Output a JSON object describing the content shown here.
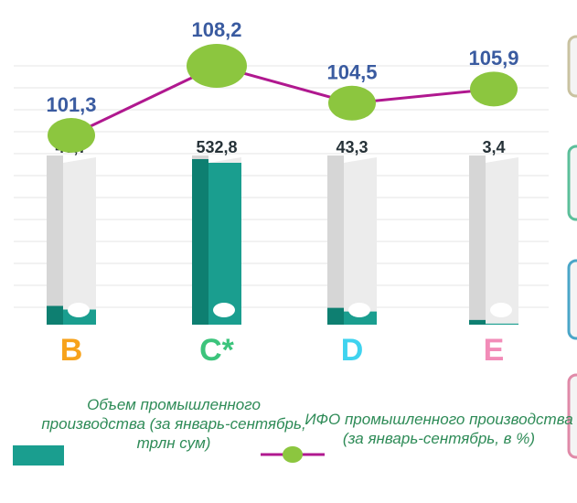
{
  "chart_data": {
    "type": "bar-line",
    "categories": [
      "B",
      "C*",
      "D",
      "E"
    ],
    "category_colors": [
      "#f7a21b",
      "#3cc47c",
      "#3fd3ef",
      "#f28cb8"
    ],
    "series": [
      {
        "name": "Объем промышленного производства (за январь-сентябрь, трлн сум)",
        "type": "bar",
        "color": "#1a9e8f",
        "values": [
          49.7,
          532.8,
          43.3,
          3.4
        ],
        "value_labels": [
          "49,7",
          "532,8",
          "43,3",
          "3,4"
        ]
      },
      {
        "name": "ИФО промышленного производства (за январь-сентябрь, в %)",
        "type": "line",
        "axis": "y2",
        "color": "#b0188f",
        "marker_color": "#8cc63f",
        "values": [
          101.3,
          108.2,
          104.5,
          105.9
        ],
        "value_labels": [
          "101,3",
          "108,2",
          "104,5",
          "105,9"
        ]
      }
    ]
  }
}
